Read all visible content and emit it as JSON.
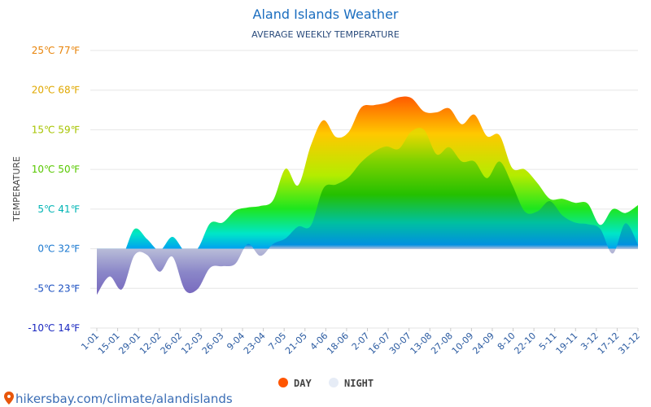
{
  "chart_data": {
    "type": "area",
    "title": "Aland Islands Weather",
    "subtitle": "AVERAGE WEEKLY TEMPERATURE",
    "ylabel": "TEMPERATURE",
    "ylim": [
      -10,
      25
    ],
    "y_ticks": [
      {
        "value": 25,
        "label": "25℃ 77℉",
        "color": "#e8840a"
      },
      {
        "value": 20,
        "label": "20℃ 68℉",
        "color": "#e0a800"
      },
      {
        "value": 15,
        "label": "15℃ 59℉",
        "color": "#a7c400"
      },
      {
        "value": 10,
        "label": "10℃ 50℉",
        "color": "#58c800"
      },
      {
        "value": 5,
        "label": "5℃ 41℉",
        "color": "#00b4b4"
      },
      {
        "value": 0,
        "label": "0℃ 32℉",
        "color": "#1a78d0"
      },
      {
        "value": -5,
        "label": "-5℃ 23℉",
        "color": "#1a4fc0"
      },
      {
        "value": -10,
        "label": "-10℃ 14℉",
        "color": "#1a28c0"
      }
    ],
    "x_tick_labels": [
      "1-01",
      "15-01",
      "29-01",
      "12-02",
      "26-02",
      "12-03",
      "26-03",
      "9-04",
      "23-04",
      "7-05",
      "21-05",
      "4-06",
      "18-06",
      "2-07",
      "16-07",
      "30-07",
      "13-08",
      "27-08",
      "10-09",
      "24-09",
      "8-10",
      "22-10",
      "5-11",
      "19-11",
      "3-12",
      "17-12",
      "31-12"
    ],
    "series": [
      {
        "name": "DAY",
        "color": "#ff5500",
        "values": [
          -0.7,
          -0.3,
          -0.9,
          2.5,
          1.2,
          -0.2,
          1.5,
          -0.3,
          0.0,
          3.2,
          3.3,
          4.8,
          5.2,
          5.4,
          6.1,
          10.1,
          8.0,
          13.0,
          16.2,
          14.1,
          14.7,
          17.8,
          18.1,
          18.4,
          19.1,
          19.0,
          17.3,
          17.2,
          17.7,
          15.7,
          16.9,
          14.2,
          14.3,
          10.2,
          10.0,
          8.3,
          6.3,
          6.3,
          5.8,
          5.7,
          3.0,
          5.0,
          4.5,
          5.5
        ]
      },
      {
        "name": "NIGHT",
        "color": "#e6ecf6",
        "values": [
          -5.8,
          -3.5,
          -5.1,
          -0.8,
          -0.8,
          -2.9,
          -1.0,
          -5.2,
          -5.1,
          -2.4,
          -2.2,
          -1.9,
          0.6,
          -0.9,
          0.6,
          1.3,
          2.8,
          2.9,
          7.6,
          8.1,
          9.0,
          10.9,
          12.2,
          12.9,
          12.6,
          14.8,
          15.0,
          11.9,
          12.8,
          11.0,
          11.0,
          8.9,
          11.0,
          8.1,
          4.7,
          4.7,
          6.0,
          4.2,
          3.3,
          3.1,
          2.5,
          -0.6,
          3.2,
          0.5
        ]
      }
    ],
    "legend": {
      "position": "bottom-center",
      "items": [
        {
          "label": "DAY",
          "color": "#ff5500"
        },
        {
          "label": "NIGHT",
          "color": "#e6ecf6"
        }
      ]
    },
    "grid": true
  },
  "footer": {
    "text": "hikersbay.com/climate/alandislands",
    "icon": "map-pin-icon",
    "icon_color": "#e8560a"
  }
}
